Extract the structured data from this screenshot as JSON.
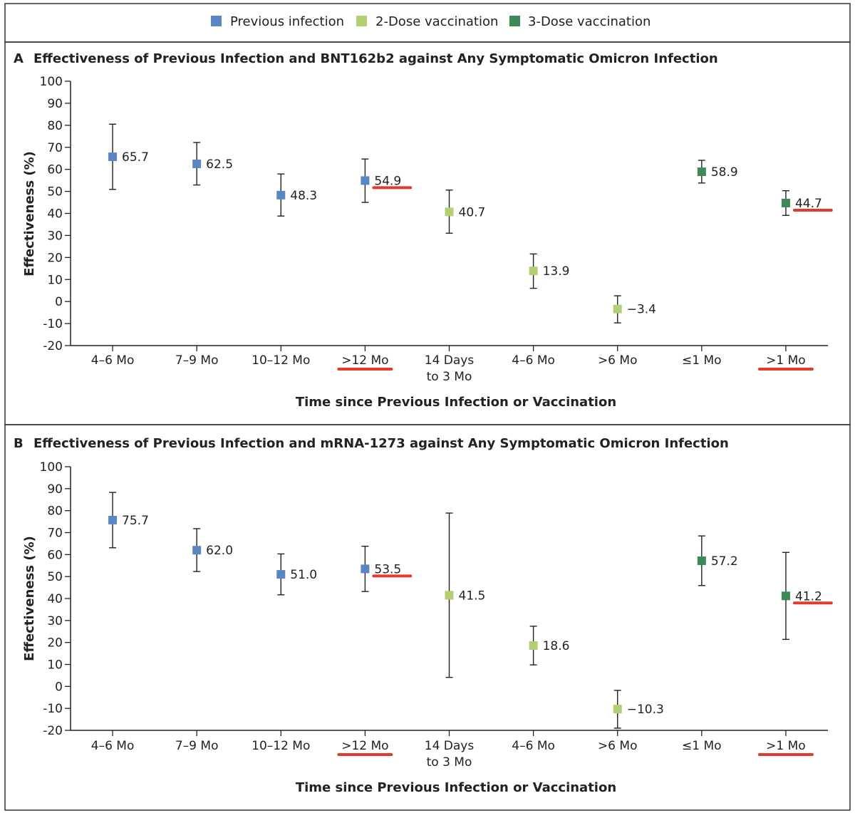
{
  "legend": {
    "items": [
      {
        "label": "Previous infection",
        "color": "#5b86c4"
      },
      {
        "label": "2-Dose vaccination",
        "color": "#b3cf73"
      },
      {
        "label": "3-Dose vaccination",
        "color": "#3d8a58"
      }
    ]
  },
  "highlight_color": "#e23b2e",
  "chart_data": [
    {
      "type": "scatter",
      "panel_letter": "A",
      "title": "Effectiveness of Previous Infection and BNT162b2 against Any Symptomatic Omicron Infection",
      "xlabel": "Time since Previous Infection or Vaccination",
      "ylabel": "Effectiveness (%)",
      "ylim": [
        -20,
        100
      ],
      "yticks": [
        "100",
        "90",
        "80",
        "70",
        "60",
        "50",
        "40",
        "30",
        "20",
        "10",
        "0",
        "-10",
        "-20"
      ],
      "categories": [
        {
          "line1": "4–6 Mo",
          "line2": ""
        },
        {
          "line1": "7–9 Mo",
          "line2": ""
        },
        {
          "line1": "10–12 Mo",
          "line2": ""
        },
        {
          "line1": ">12 Mo",
          "line2": ""
        },
        {
          "line1": "14 Days",
          "line2": "to 3 Mo"
        },
        {
          "line1": "4–6 Mo",
          "line2": ""
        },
        {
          "line1": ">6 Mo",
          "line2": ""
        },
        {
          "line1": "≤1 Mo",
          "line2": ""
        },
        {
          "line1": ">1 Mo",
          "line2": ""
        }
      ],
      "points": [
        {
          "value": 65.7,
          "label": "65.7",
          "low": 50.9,
          "high": 80.5,
          "group": 0
        },
        {
          "value": 62.5,
          "label": "62.5",
          "low": 52.9,
          "high": 72.2,
          "group": 0
        },
        {
          "value": 48.3,
          "label": "48.3",
          "low": 38.8,
          "high": 57.9,
          "group": 0
        },
        {
          "value": 54.9,
          "label": "54.9",
          "low": 45.0,
          "high": 64.7,
          "group": 0,
          "highlight": true
        },
        {
          "value": 40.7,
          "label": "40.7",
          "low": 31.0,
          "high": 50.6,
          "group": 1
        },
        {
          "value": 13.9,
          "label": "13.9",
          "low": 6.0,
          "high": 21.6,
          "group": 1
        },
        {
          "value": -3.4,
          "label": "−3.4",
          "low": -9.7,
          "high": 2.6,
          "group": 1
        },
        {
          "value": 58.9,
          "label": "58.9",
          "low": 53.8,
          "high": 64.1,
          "group": 2
        },
        {
          "value": 44.7,
          "label": "44.7",
          "low": 39.1,
          "high": 50.3,
          "group": 2,
          "highlight": true
        }
      ],
      "highlight_categories": [
        3,
        8
      ]
    },
    {
      "type": "scatter",
      "panel_letter": "B",
      "title": "Effectiveness of Previous Infection and mRNA-1273 against Any Symptomatic Omicron Infection",
      "xlabel": "Time since Previous Infection or Vaccination",
      "ylabel": "Effectiveness (%)",
      "ylim": [
        -20,
        100
      ],
      "yticks": [
        "100",
        "90",
        "80",
        "70",
        "60",
        "50",
        "40",
        "30",
        "20",
        "10",
        "0",
        "-10",
        "-20"
      ],
      "categories": [
        {
          "line1": "4–6 Mo",
          "line2": ""
        },
        {
          "line1": "7–9 Mo",
          "line2": ""
        },
        {
          "line1": "10–12 Mo",
          "line2": ""
        },
        {
          "line1": ">12 Mo",
          "line2": ""
        },
        {
          "line1": "14 Days",
          "line2": "to 3 Mo"
        },
        {
          "line1": "4–6 Mo",
          "line2": ""
        },
        {
          "line1": ">6 Mo",
          "line2": ""
        },
        {
          "line1": "≤1 Mo",
          "line2": ""
        },
        {
          "line1": ">1 Mo",
          "line2": ""
        }
      ],
      "points": [
        {
          "value": 75.7,
          "label": "75.7",
          "low": 63.1,
          "high": 88.3,
          "group": 0
        },
        {
          "value": 62.0,
          "label": "62.0",
          "low": 52.3,
          "high": 71.8,
          "group": 0
        },
        {
          "value": 51.0,
          "label": "51.0",
          "low": 41.7,
          "high": 60.3,
          "group": 0
        },
        {
          "value": 53.5,
          "label": "53.5",
          "low": 43.2,
          "high": 63.8,
          "group": 0,
          "highlight": true
        },
        {
          "value": 41.5,
          "label": "41.5",
          "low": 4.1,
          "high": 78.9,
          "group": 1
        },
        {
          "value": 18.6,
          "label": "18.6",
          "low": 9.8,
          "high": 27.4,
          "group": 1
        },
        {
          "value": -10.3,
          "label": "−10.3",
          "low": -19.0,
          "high": -1.8,
          "group": 1
        },
        {
          "value": 57.2,
          "label": "57.2",
          "low": 45.9,
          "high": 68.5,
          "group": 2
        },
        {
          "value": 41.2,
          "label": "41.2",
          "low": 21.4,
          "high": 61.0,
          "group": 2,
          "highlight": true
        }
      ],
      "highlight_categories": [
        3,
        8
      ]
    }
  ]
}
